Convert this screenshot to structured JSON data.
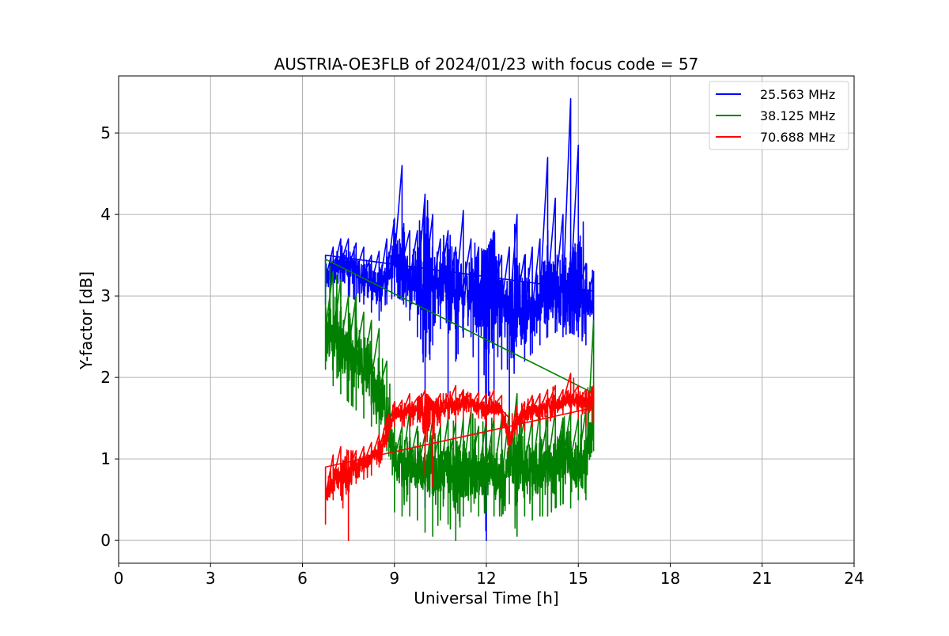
{
  "chart_data": {
    "type": "line",
    "title": "AUSTRIA-OE3FLB of 2024/01/23 with focus code = 57",
    "xlabel": "Universal Time [h]",
    "ylabel": "Y-factor [dB]",
    "xlim": [
      0,
      24
    ],
    "ylim": [
      -0.28,
      5.7
    ],
    "x_ticks": [
      0,
      3,
      6,
      9,
      12,
      15,
      18,
      21,
      24
    ],
    "y_ticks": [
      0,
      1,
      2,
      3,
      4,
      5
    ],
    "grid": true,
    "legend_position": "top-right",
    "series": [
      {
        "name": "25.563 MHz",
        "color": "#0000ff",
        "x": [
          6.75,
          7.0,
          7.25,
          7.5,
          7.75,
          8.0,
          8.25,
          8.5,
          8.75,
          9.0,
          9.25,
          9.5,
          9.75,
          10.0,
          10.25,
          10.5,
          10.75,
          11.0,
          11.25,
          11.5,
          11.75,
          12.0,
          12.25,
          12.5,
          12.75,
          13.0,
          13.25,
          13.5,
          13.75,
          14.0,
          14.25,
          14.5,
          14.75,
          15.0,
          15.25,
          15.5
        ],
        "y": [
          3.2,
          3.3,
          3.4,
          3.35,
          3.3,
          3.25,
          3.15,
          3.1,
          3.25,
          3.45,
          3.4,
          3.2,
          3.1,
          3.2,
          3.1,
          3.15,
          3.05,
          3.0,
          3.1,
          3.05,
          3.05,
          2.95,
          3.1,
          2.9,
          2.8,
          2.95,
          2.8,
          2.85,
          3.0,
          3.1,
          3.05,
          3.0,
          3.1,
          3.05,
          2.9,
          2.95
        ],
        "upper": [
          3.5,
          3.6,
          3.7,
          3.7,
          3.65,
          3.6,
          3.5,
          3.55,
          3.7,
          3.95,
          4.6,
          3.8,
          3.8,
          4.25,
          4.0,
          3.7,
          3.8,
          3.6,
          4.05,
          3.7,
          3.6,
          3.55,
          3.8,
          3.5,
          3.6,
          4.0,
          3.5,
          3.6,
          3.7,
          4.7,
          4.2,
          4.0,
          5.42,
          4.85,
          3.4,
          3.3
        ],
        "lower": [
          2.9,
          3.0,
          3.0,
          3.0,
          2.95,
          2.9,
          2.8,
          2.7,
          2.9,
          3.0,
          2.95,
          2.7,
          2.5,
          0.4,
          2.4,
          2.6,
          1.4,
          2.2,
          2.5,
          2.5,
          1.6,
          0.0,
          1.5,
          2.1,
          1.3,
          2.5,
          2.2,
          2.3,
          2.4,
          2.5,
          2.55,
          2.5,
          2.55,
          2.5,
          2.4,
          2.5
        ]
      },
      {
        "name": "38.125 MHz",
        "color": "#008000",
        "x": [
          6.75,
          7.0,
          7.25,
          7.5,
          7.75,
          8.0,
          8.25,
          8.5,
          8.75,
          9.0,
          9.25,
          9.5,
          9.75,
          10.0,
          10.25,
          10.5,
          10.75,
          11.0,
          11.25,
          11.5,
          11.75,
          12.0,
          12.25,
          12.5,
          12.75,
          13.0,
          13.25,
          13.5,
          13.75,
          14.0,
          14.25,
          14.5,
          14.75,
          15.0,
          15.25,
          15.5
        ],
        "y": [
          2.6,
          2.5,
          2.4,
          2.35,
          2.3,
          2.15,
          2.0,
          1.85,
          1.6,
          1.0,
          0.9,
          0.95,
          0.85,
          0.8,
          0.9,
          0.85,
          0.9,
          0.7,
          0.85,
          0.9,
          0.8,
          0.9,
          0.8,
          0.75,
          0.95,
          1.0,
          0.9,
          0.85,
          0.95,
          0.9,
          0.95,
          1.0,
          1.0,
          0.95,
          0.9,
          1.6
        ],
        "upper": [
          3.45,
          3.3,
          3.2,
          3.0,
          3.0,
          2.8,
          2.7,
          2.6,
          2.2,
          1.5,
          1.4,
          1.6,
          1.4,
          1.3,
          1.5,
          1.4,
          1.5,
          1.45,
          1.5,
          1.6,
          1.4,
          1.5,
          1.5,
          1.5,
          1.6,
          1.8,
          1.5,
          1.5,
          1.6,
          1.5,
          1.6,
          1.5,
          1.6,
          1.5,
          1.6,
          2.7
        ],
        "lower": [
          2.1,
          1.9,
          1.8,
          1.7,
          1.6,
          1.5,
          1.4,
          1.3,
          1.1,
          0.35,
          0.3,
          0.3,
          0.25,
          0.1,
          0.05,
          0.25,
          0.2,
          0.0,
          0.3,
          0.35,
          0.3,
          0.35,
          0.3,
          0.3,
          0.45,
          0.05,
          0.3,
          0.25,
          0.3,
          0.3,
          0.4,
          0.45,
          0.4,
          0.5,
          0.5,
          1.1
        ]
      },
      {
        "name": "70.688 MHz",
        "color": "#ff0000",
        "x": [
          6.75,
          7.0,
          7.25,
          7.5,
          7.75,
          8.0,
          8.25,
          8.5,
          8.75,
          9.0,
          9.25,
          9.5,
          9.75,
          10.0,
          10.25,
          10.5,
          10.75,
          11.0,
          11.25,
          11.5,
          11.75,
          12.0,
          12.25,
          12.5,
          12.75,
          13.0,
          13.25,
          13.5,
          13.75,
          14.0,
          14.25,
          14.5,
          14.75,
          15.0,
          15.25,
          15.5
        ],
        "y": [
          0.55,
          0.75,
          0.8,
          0.85,
          0.9,
          0.95,
          1.0,
          1.1,
          1.3,
          1.55,
          1.55,
          1.6,
          1.6,
          1.55,
          1.6,
          1.6,
          1.65,
          1.65,
          1.7,
          1.65,
          1.65,
          1.6,
          1.65,
          1.6,
          1.2,
          1.45,
          1.55,
          1.6,
          1.6,
          1.65,
          1.65,
          1.7,
          1.75,
          1.7,
          1.7,
          1.75
        ],
        "upper": [
          0.9,
          1.05,
          1.15,
          1.1,
          1.1,
          1.15,
          1.2,
          1.3,
          1.5,
          1.7,
          1.72,
          1.8,
          1.75,
          1.85,
          1.7,
          1.8,
          1.8,
          1.9,
          1.85,
          1.8,
          1.82,
          1.8,
          1.85,
          1.78,
          1.5,
          1.65,
          1.7,
          1.78,
          1.8,
          1.85,
          1.9,
          1.85,
          2.05,
          1.9,
          1.85,
          1.9
        ],
        "lower": [
          0.2,
          0.5,
          0.55,
          0.0,
          0.7,
          0.75,
          0.8,
          0.9,
          1.15,
          1.4,
          1.4,
          1.4,
          1.45,
          0.8,
          0.65,
          1.4,
          1.5,
          1.45,
          1.5,
          1.5,
          1.5,
          1.4,
          1.45,
          1.4,
          1.05,
          1.3,
          1.35,
          1.4,
          1.45,
          1.45,
          1.5,
          1.55,
          1.55,
          1.5,
          1.4,
          1.45
        ]
      }
    ]
  }
}
